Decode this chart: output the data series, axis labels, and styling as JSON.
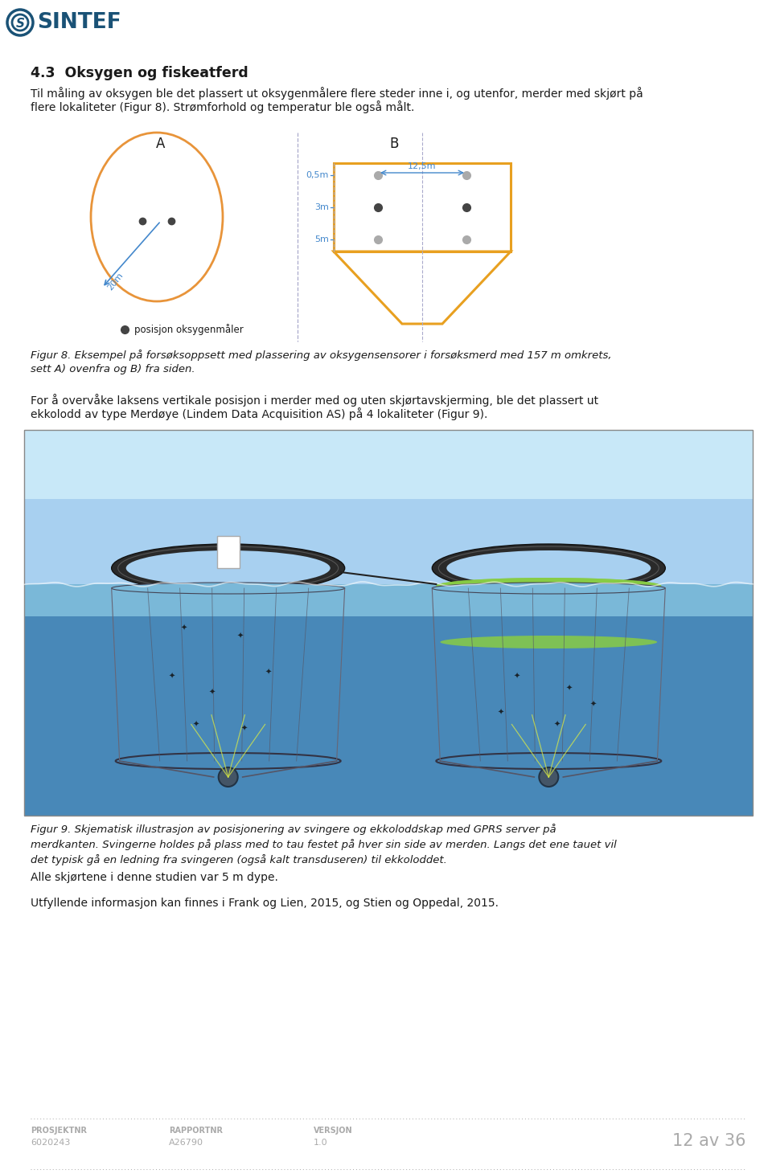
{
  "page_bg": "#ffffff",
  "header_logo_color": "#1a5276",
  "section_title": "4.3  Oksygen og fiskeatferd",
  "para1_line1": "Til måling av oksygen ble det plassert ut oksygenmålere flere steder inne i, og utenfor, merder med skjørt på",
  "para1_line2": "flere lokaliteter (Figur 8). Strømforhold og temperatur ble også målt.",
  "fig8_caption": "Figur 8. Eksempel på forsøksoppsett med plassering av oksygensensorer i forsøksmerd med 157 m omkrets,\nsett A) ovenfra og B) fra siden.",
  "para2_line1": "For å overvåke laksens vertikale posisjon i merder med og uten skjørtavskjerming, ble det plassert ut",
  "para2_line2": "ekkolodd av type Merdøye (Lindem Data Acquisition AS) på 4 lokaliteter (Figur 9).",
  "fig9_caption": "Figur 9. Skjematisk illustrasjon av posisjonering av svingere og ekkoloddskap med GPRS server på\nmerdkanten. Svingerne holdes på plass med to tau festet på hver sin side av merden. Langs det ene tauet vil\ndet typisk gå en ledning fra svingeren (også kalt transduseren) til ekkoloddet.",
  "para3": "Alle skjørtene i denne studien var 5 m dype.",
  "para4": "Utfyllende informasjon kan finnes i Frank og Lien, 2015, og Stien og Oppedal, 2015.",
  "footer_label1": "PROSJEKTNR",
  "footer_val1": "6020243",
  "footer_label2": "RAPPORTNR",
  "footer_val2": "A26790",
  "footer_label3": "VERSJON",
  "footer_val3": "1.0",
  "footer_page": "12 av 36",
  "footer_color": "#aaaaaa",
  "text_color": "#1a1a1a",
  "fig8_circle_color": "#e8943a",
  "fig8_dot_dark": "#444444",
  "fig8_dot_light": "#aaaaaa",
  "fig8_rect_color": "#e8a020",
  "fig8_dim_color": "#4488cc",
  "fig8_dashed_color": "#aaaacc",
  "fig8_20m": "20m",
  "fig8_05m": "0,5m",
  "fig8_3m": "3m",
  "fig8_5m": "5m",
  "fig8_125m": "12,5m",
  "fig8_legend_text": "posisjon oksygenmåler",
  "fig9_sky_top": "#c8e8f8",
  "fig9_sky_bottom": "#a8d0f0",
  "fig9_water_top": "#7ab8d8",
  "fig9_water_bottom": "#4888b8",
  "fig9_ring_color": "#2a2a2a",
  "fig9_net_color": "#555566",
  "fig9_green_color": "#88cc44",
  "fig9_sounder_color": "#445566",
  "fig9_line_color": "#ccdd88",
  "fig9_box_color": "#f8f8f0"
}
